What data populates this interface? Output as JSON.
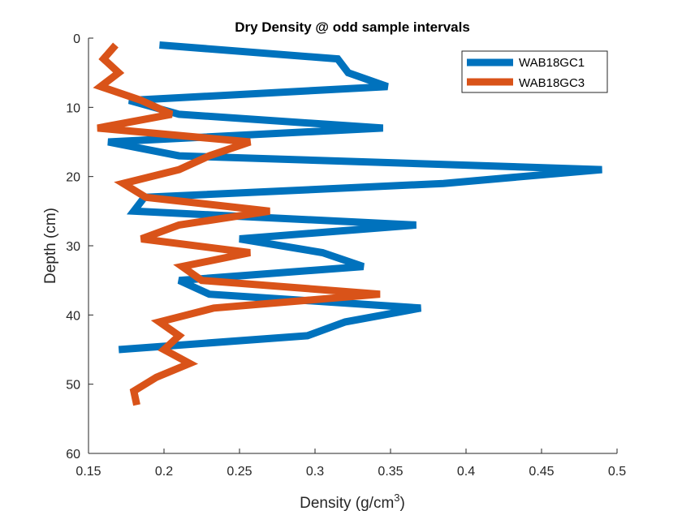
{
  "chart_data": {
    "type": "line",
    "title": "Dry Density @ odd sample intervals",
    "xlabel_main": "Density (g/cm",
    "xlabel_sup": "3",
    "xlabel_end": ")",
    "ylabel": "Depth (cm)",
    "xlim": [
      0.15,
      0.5
    ],
    "ylim": [
      0,
      60
    ],
    "y_reversed": true,
    "x_ticks": [
      0.15,
      0.2,
      0.25,
      0.3,
      0.35,
      0.4,
      0.45,
      0.5
    ],
    "x_tick_labels": [
      "0.15",
      "0.2",
      "0.25",
      "0.3",
      "0.35",
      "0.4",
      "0.45",
      "0.5"
    ],
    "y_ticks": [
      0,
      10,
      20,
      30,
      40,
      50,
      60
    ],
    "y_tick_labels": [
      "0",
      "10",
      "20",
      "30",
      "40",
      "50",
      "60"
    ],
    "grid": false,
    "legend_position": "top-right",
    "series": [
      {
        "name": "WAB18GC1",
        "color": "#0072BD",
        "points": [
          [
            0.197,
            1
          ],
          [
            0.315,
            3
          ],
          [
            0.322,
            5
          ],
          [
            0.348,
            7
          ],
          [
            0.177,
            9
          ],
          [
            0.21,
            11
          ],
          [
            0.345,
            13
          ],
          [
            0.163,
            15
          ],
          [
            0.21,
            17
          ],
          [
            0.49,
            19
          ],
          [
            0.385,
            21
          ],
          [
            0.187,
            23
          ],
          [
            0.18,
            25
          ],
          [
            0.367,
            27
          ],
          [
            0.25,
            29
          ],
          [
            0.305,
            31
          ],
          [
            0.332,
            33
          ],
          [
            0.21,
            35
          ],
          [
            0.23,
            37
          ],
          [
            0.37,
            39
          ],
          [
            0.32,
            41
          ],
          [
            0.295,
            43
          ],
          [
            0.17,
            45
          ]
        ]
      },
      {
        "name": "WAB18GC3",
        "color": "#D95319",
        "points": [
          [
            0.168,
            1
          ],
          [
            0.16,
            3
          ],
          [
            0.17,
            5
          ],
          [
            0.158,
            7
          ],
          [
            0.185,
            9
          ],
          [
            0.205,
            11
          ],
          [
            0.156,
            13
          ],
          [
            0.257,
            15
          ],
          [
            0.23,
            17
          ],
          [
            0.21,
            19
          ],
          [
            0.173,
            21
          ],
          [
            0.188,
            23
          ],
          [
            0.27,
            25
          ],
          [
            0.21,
            27
          ],
          [
            0.185,
            29
          ],
          [
            0.257,
            31
          ],
          [
            0.212,
            33
          ],
          [
            0.225,
            35
          ],
          [
            0.343,
            37
          ],
          [
            0.233,
            39
          ],
          [
            0.197,
            41
          ],
          [
            0.21,
            43
          ],
          [
            0.2,
            45
          ],
          [
            0.217,
            47
          ],
          [
            0.195,
            49
          ],
          [
            0.18,
            51
          ],
          [
            0.182,
            53
          ]
        ]
      }
    ]
  }
}
